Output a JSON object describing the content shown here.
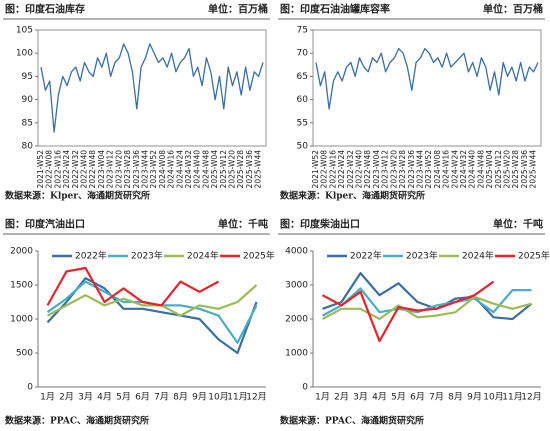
{
  "chart_data": [
    {
      "type": "line",
      "title": "图：印度石油库存",
      "unit": "单位：百万桶",
      "source": "数据来源：Klper、海通期货研究所",
      "categories": [
        "2021-W52",
        null,
        "2022-W08",
        null,
        "2022-W16",
        null,
        "2022-W24",
        null,
        "2022-W32",
        null,
        "2022-W40",
        null,
        "2022-W48",
        null,
        "2023-W04",
        null,
        "2023-W12",
        null,
        "2023-W20",
        null,
        "2023-W28",
        null,
        "2023-W36",
        null,
        "2023-W44",
        null,
        "2023-W52",
        null,
        "2024-W08",
        null,
        "2024-W16",
        null,
        "2024-W24",
        null,
        "2024-W32",
        null,
        "2024-W40",
        null,
        "2024-W48",
        null,
        "2025-W04",
        null,
        "2025-W12",
        null,
        "2025-W20",
        null,
        "2025-W28",
        null,
        "2025-W36",
        null,
        "2025-W44",
        null
      ],
      "series": [
        {
          "name": null,
          "color": "#3a6ea5",
          "values": [
            97,
            92,
            94,
            83,
            91,
            95,
            93,
            96,
            97,
            94,
            98,
            96,
            95,
            99,
            97,
            100,
            95,
            98,
            99,
            102,
            100,
            96,
            88,
            97,
            99,
            102,
            100,
            98,
            99,
            97,
            100,
            96,
            98,
            99,
            101,
            95,
            97,
            93,
            99,
            96,
            90,
            95,
            88,
            97,
            93,
            96,
            91,
            97,
            92,
            96,
            95,
            98
          ]
        }
      ],
      "ylim": [
        80,
        105
      ],
      "yticks": [
        80,
        85,
        90,
        95,
        100,
        105
      ],
      "frame": true
    },
    {
      "type": "line",
      "title": "图：印度石油油罐库容率",
      "unit": "单位：百万桶",
      "source": "数据来源：Klper、海通期货研究所",
      "categories": [
        "2021-W52",
        null,
        "2022-W08",
        null,
        "2022-W16",
        null,
        "2022-W24",
        null,
        "2022-W32",
        null,
        "2022-W40",
        null,
        "2022-W48",
        null,
        "2023-W04",
        null,
        "2023-W12",
        null,
        "2023-W20",
        null,
        "2023-W28",
        null,
        "2023-W36",
        null,
        "2023-W44",
        null,
        "2023-W52",
        null,
        "2024-W08",
        null,
        "2024-W16",
        null,
        "2024-W24",
        null,
        "2024-W32",
        null,
        "2024-W40",
        null,
        "2024-W48",
        null,
        "2025-W04",
        null,
        "2025-W12",
        null,
        "2025-W20",
        null,
        "2025-W28",
        null,
        "2025-W36",
        null,
        "2025-W44",
        null
      ],
      "series": [
        {
          "name": null,
          "color": "#3a6ea5",
          "values": [
            68,
            63,
            66,
            58,
            64,
            66,
            64,
            67,
            68,
            65,
            69,
            67,
            66,
            69,
            68,
            70,
            66,
            68,
            69,
            71,
            70,
            67,
            62,
            68,
            69,
            71,
            70,
            68,
            69,
            67,
            70,
            67,
            68,
            69,
            70,
            66,
            68,
            65,
            69,
            67,
            62,
            66,
            61,
            68,
            65,
            67,
            64,
            68,
            64,
            67,
            66,
            68
          ]
        }
      ],
      "ylim": [
        50,
        75
      ],
      "yticks": [
        50,
        55,
        60,
        65,
        70,
        75
      ],
      "frame": true
    },
    {
      "type": "line",
      "title": "图：印度汽油出口",
      "unit": "单位：千吨",
      "source": "数据来源：PPAC、海通期货研究所",
      "categories": [
        "1月",
        "2月",
        "3月",
        "4月",
        "5月",
        "6月",
        "7月",
        "8月",
        "9月",
        "10月",
        "11月",
        "12月"
      ],
      "series": [
        {
          "name": "2022年",
          "color": "#3a6ea5",
          "values": [
            950,
            1250,
            1600,
            1450,
            1150,
            1150,
            1100,
            1050,
            1000,
            700,
            500,
            1250
          ]
        },
        {
          "name": "2023年",
          "color": "#4bacc6",
          "values": [
            1100,
            1300,
            1550,
            1400,
            1250,
            1250,
            1200,
            1200,
            1150,
            1050,
            650,
            1200
          ]
        },
        {
          "name": "2024年",
          "color": "#9bbb59",
          "values": [
            1050,
            1200,
            1350,
            1200,
            1300,
            1200,
            1200,
            1050,
            1200,
            1150,
            1250,
            1500
          ]
        },
        {
          "name": "2025年",
          "color": "#e8232b",
          "values": [
            1200,
            1700,
            1750,
            1250,
            1450,
            1250,
            1200,
            1550,
            1400,
            1550,
            null,
            null
          ]
        }
      ],
      "ylim": [
        0,
        2000
      ],
      "yticks": [
        0,
        500,
        1000,
        1500,
        2000
      ],
      "frame": false
    },
    {
      "type": "line",
      "title": "图：印度柴油出口",
      "unit": "单位：千吨",
      "source": "数据来源：PPAC、海通期货研究所",
      "categories": [
        "1月",
        "2月",
        "3月",
        "4月",
        "5月",
        "6月",
        "7月",
        "8月",
        "9月",
        "10月",
        "11月",
        "12月"
      ],
      "series": [
        {
          "name": "2022年",
          "color": "#3a6ea5",
          "values": [
            2300,
            2500,
            3350,
            2700,
            3050,
            2500,
            2300,
            2600,
            2650,
            2050,
            2000,
            2450
          ]
        },
        {
          "name": "2023年",
          "color": "#4bacc6",
          "values": [
            2100,
            2400,
            2900,
            2200,
            2300,
            2200,
            2400,
            2500,
            2600,
            2200,
            2850,
            2850
          ]
        },
        {
          "name": "2024年",
          "color": "#9bbb59",
          "values": [
            2000,
            2300,
            2300,
            2000,
            2400,
            2050,
            2100,
            2200,
            2650,
            2450,
            2300,
            2450
          ]
        },
        {
          "name": "2025年",
          "color": "#e8232b",
          "values": [
            2700,
            2400,
            2800,
            1350,
            2350,
            2250,
            2300,
            2500,
            2700,
            3100,
            null,
            null
          ]
        }
      ],
      "ylim": [
        0,
        4000
      ],
      "yticks": [
        0,
        1000,
        2000,
        3000,
        4000
      ],
      "frame": false
    }
  ]
}
